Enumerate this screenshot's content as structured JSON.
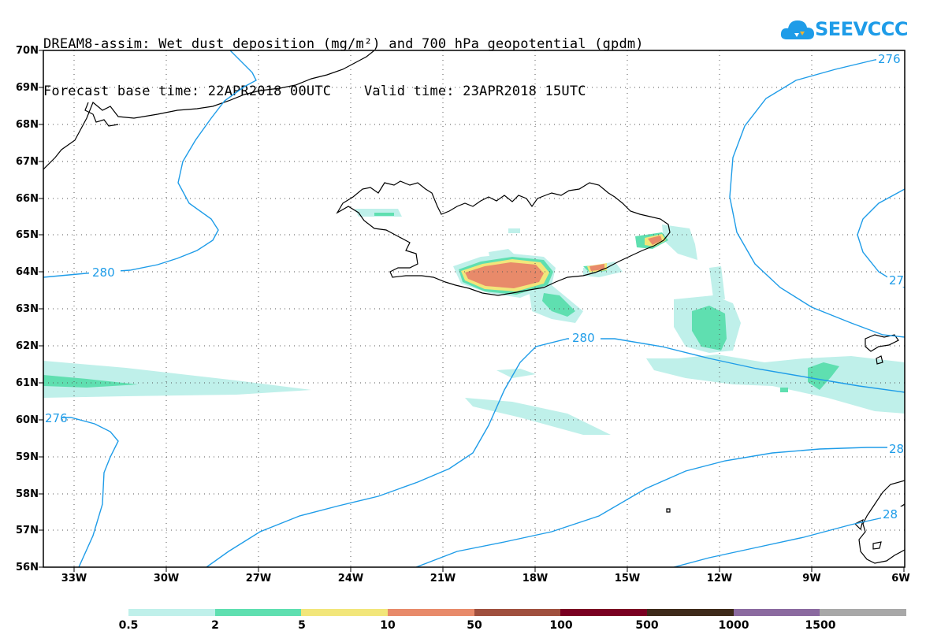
{
  "title": {
    "line1": "DREAM8-assim: Wet dust deposition (mg/m²) and 700 hPa geopotential (gpdm)",
    "line2": "Forecast base time: 22APR2018 00UTC    Valid time: 23APR2018 15UTC"
  },
  "logo": {
    "text": "SEEVCCC",
    "icon": "cloud-icon",
    "color": "#1e9ce8"
  },
  "axes": {
    "lat_labels": [
      "70N",
      "69N",
      "68N",
      "67N",
      "66N",
      "65N",
      "64N",
      "63N",
      "62N",
      "61N",
      "60N",
      "59N",
      "58N",
      "57N",
      "56N"
    ],
    "lon_labels": [
      "33W",
      "30W",
      "27W",
      "24W",
      "21W",
      "18W",
      "15W",
      "12W",
      "9W",
      "6W"
    ]
  },
  "contours": {
    "color": "#1e9ce8",
    "labels": [
      "280",
      "280",
      "276",
      "276",
      "27",
      "28",
      "28"
    ]
  },
  "legend": {
    "colors": [
      "#bff0ea",
      "#5fdfb0",
      "#f2e67a",
      "#e88a6a",
      "#a0503e",
      "#7a0022",
      "#3e2a1a",
      "#8b6aa0",
      "#a8a8a8"
    ],
    "labels": [
      "0.5",
      "2",
      "5",
      "10",
      "50",
      "100",
      "500",
      "1000",
      "1500"
    ]
  }
}
